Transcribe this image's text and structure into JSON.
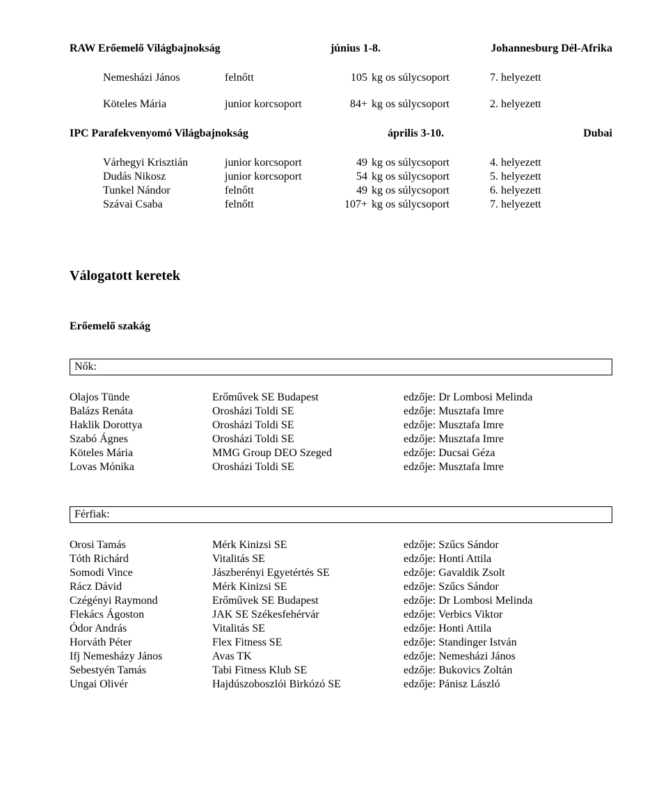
{
  "event1": {
    "title_left": "RAW Erőemelő Világbajnokság",
    "title_mid": "június 1-8.",
    "title_right": "Johannesburg Dél-Afrika",
    "rows": [
      {
        "name": "Nemesházi János",
        "age": "felnőtt",
        "num": "105",
        "wt": "kg os súlycsoport",
        "place": "7. helyezett"
      },
      {
        "name": "Köteles Mária",
        "age": "junior korcsoport",
        "num": "84+",
        "wt": "kg os súlycsoport",
        "place": "2. helyezett"
      }
    ]
  },
  "event2": {
    "title_left": "IPC Parafekvenyomó Világbajnokság",
    "title_mid": "április 3-10.",
    "title_right": "Dubai",
    "rows": [
      {
        "name": "Várhegyi Krisztián",
        "age": "junior korcsoport",
        "num": "49",
        "wt": "kg os súlycsoport",
        "place": "4. helyezett"
      },
      {
        "name": "Dudás Nikosz",
        "age": "junior korcsoport",
        "num": "54",
        "wt": "kg os súlycsoport",
        "place": "5. helyezett"
      },
      {
        "name": "Tunkel Nándor",
        "age": "felnőtt",
        "num": "49",
        "wt": "kg os súlycsoport",
        "place": "6. helyezett"
      },
      {
        "name": "Szávai Csaba",
        "age": "felnőtt",
        "num": "107+",
        "wt": "kg os súlycsoport",
        "place": "7. helyezett"
      }
    ]
  },
  "section_title": "Válogatott keretek",
  "sub_title": "Erőemelő szakág",
  "women_label": "Nők:",
  "men_label": "Férfiak:",
  "women": [
    {
      "name": "Olajos Tünde",
      "club": "Erőművek SE Budapest",
      "coach": "edzője: Dr Lombosi Melinda"
    },
    {
      "name": "Balázs Renáta",
      "club": "Orosházi Toldi SE",
      "coach": "edzője: Musztafa Imre"
    },
    {
      "name": "Haklik Dorottya",
      "club": "Orosházi Toldi SE",
      "coach": "edzője: Musztafa Imre"
    },
    {
      "name": "Szabó Ágnes",
      "club": "Orosházi Toldi SE",
      "coach": "edzője: Musztafa Imre"
    },
    {
      "name": "Köteles Mária",
      "club": "MMG Group DEO Szeged",
      "coach": "edzője: Ducsai Géza"
    },
    {
      "name": "Lovas Mónika",
      "club": "Orosházi Toldi SE",
      "coach": "edzője: Musztafa Imre"
    }
  ],
  "men": [
    {
      "name": "Orosi Tamás",
      "club": "Mérk Kinizsi SE",
      "coach": "edzője: Szűcs Sándor"
    },
    {
      "name": "Tóth Richárd",
      "club": "Vitalitás SE",
      "coach": "edzője: Honti Attila"
    },
    {
      "name": "Somodi Vince",
      "club": "Jászberényi Egyetértés SE",
      "coach": "edzője: Gavaldik Zsolt"
    },
    {
      "name": "Rácz Dávid",
      "club": "Mérk Kinizsi SE",
      "coach": "edzője: Szűcs Sándor"
    },
    {
      "name": "Czégényi Raymond",
      "club": "Erőművek SE Budapest",
      "coach": "edzője: Dr Lombosi Melinda"
    },
    {
      "name": "Flekács Ágoston",
      "club": "JAK SE Székesfehérvár",
      "coach": "edzője: Verbics Viktor"
    },
    {
      "name": "Ódor András",
      "club": "Vitalitás SE",
      "coach": "edzője: Honti Attila"
    },
    {
      "name": "Horváth Péter",
      "club": "Flex Fitness SE",
      "coach": "edzője: Standinger István"
    },
    {
      "name": "Ifj Nemesházy János",
      "club": "Avas TK",
      "coach": "edzője: Nemesházi János"
    },
    {
      "name": "Sebestyén Tamás",
      "club": "Tabi Fitness Klub SE",
      "coach": "edzője: Bukovics Zoltán"
    },
    {
      "name": "Ungai Olivér",
      "club": "Hajdúszoboszlói Birkózó SE",
      "coach": "edzője: Pánisz László"
    }
  ]
}
